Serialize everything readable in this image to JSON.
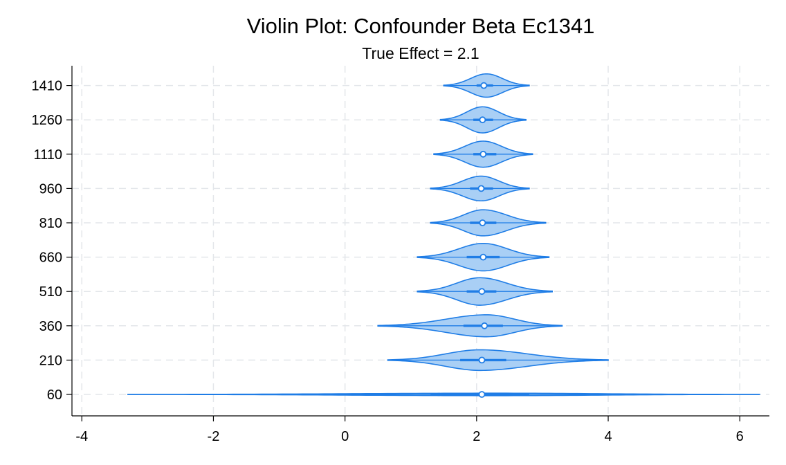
{
  "chart_data": {
    "type": "violin",
    "title": "Violin Plot: Confounder Beta Ec1341",
    "subtitle": "True Effect = 2.1",
    "xlabel": "",
    "ylabel": "",
    "xlim": [
      -4.15,
      6.45
    ],
    "xticks": [
      -4,
      -2,
      0,
      2,
      4,
      6
    ],
    "grid": true,
    "colors": {
      "fill": "#a9cff5",
      "stroke": "#1f7de6",
      "median_fill": "#ffffff"
    },
    "categories": [
      "60",
      "210",
      "360",
      "510",
      "660",
      "810",
      "960",
      "1110",
      "1260",
      "1410"
    ],
    "violins": [
      {
        "label": "60",
        "min": -3.3,
        "q1": 1.3,
        "median": 2.08,
        "q3": 2.8,
        "max": 6.3,
        "mode": 2.3,
        "half_width": 0.036
      },
      {
        "label": "210",
        "min": 0.65,
        "q1": 1.75,
        "median": 2.08,
        "q3": 2.45,
        "max": 4.0,
        "mode": 2.05,
        "half_width": 0.3
      },
      {
        "label": "360",
        "min": 0.5,
        "q1": 1.8,
        "median": 2.12,
        "q3": 2.4,
        "max": 3.3,
        "mode": 2.15,
        "half_width": 0.32
      },
      {
        "label": "510",
        "min": 1.1,
        "q1": 1.85,
        "median": 2.08,
        "q3": 2.3,
        "max": 3.15,
        "mode": 2.05,
        "half_width": 0.4
      },
      {
        "label": "660",
        "min": 1.1,
        "q1": 1.85,
        "median": 2.1,
        "q3": 2.35,
        "max": 3.1,
        "mode": 2.1,
        "half_width": 0.4
      },
      {
        "label": "810",
        "min": 1.3,
        "q1": 1.9,
        "median": 2.09,
        "q3": 2.3,
        "max": 3.05,
        "mode": 2.1,
        "half_width": 0.38
      },
      {
        "label": "960",
        "min": 1.3,
        "q1": 1.9,
        "median": 2.07,
        "q3": 2.25,
        "max": 2.8,
        "mode": 2.07,
        "half_width": 0.36
      },
      {
        "label": "1110",
        "min": 1.35,
        "q1": 1.95,
        "median": 2.1,
        "q3": 2.3,
        "max": 2.85,
        "mode": 2.1,
        "half_width": 0.38
      },
      {
        "label": "1260",
        "min": 1.45,
        "q1": 1.95,
        "median": 2.09,
        "q3": 2.25,
        "max": 2.75,
        "mode": 2.09,
        "half_width": 0.38
      },
      {
        "label": "1410",
        "min": 1.5,
        "q1": 2.0,
        "median": 2.11,
        "q3": 2.25,
        "max": 2.8,
        "mode": 2.15,
        "half_width": 0.34
      }
    ]
  }
}
